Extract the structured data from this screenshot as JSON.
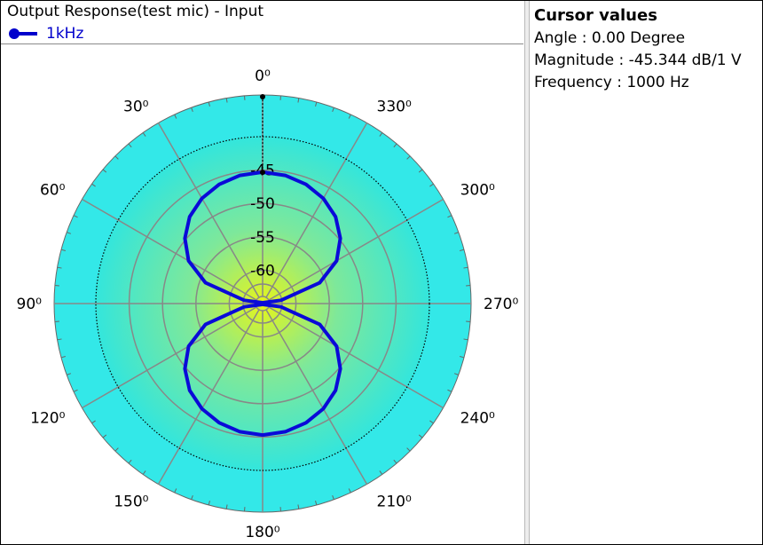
{
  "window": {
    "title": "Output Response(test mic) - Input"
  },
  "legend": {
    "label": "1kHz",
    "color": "#0000cc"
  },
  "cursor": {
    "title": "Cursor values",
    "angle_text": "Angle :  0.00 Degree",
    "magnitude_text": "Magnitude : -45.344 dB/1 V",
    "frequency_text": "Frequency : 1000 Hz"
  },
  "colors": {
    "trace": "#0a0ad8",
    "outer_ring": "#33e8e8",
    "gradient_center": "#e6f51a",
    "gradient_mid": "#7ee89a",
    "gradient_edge": "#33e6dc",
    "grid": "#888888"
  },
  "chart_data": {
    "type": "polar-line",
    "title": "Output Response(test mic) - Input",
    "series": [
      {
        "name": "1kHz",
        "angles_deg": [
          0,
          10,
          20,
          30,
          40,
          50,
          60,
          70,
          80,
          90,
          100,
          110,
          120,
          130,
          140,
          150,
          160,
          170,
          180,
          190,
          200,
          210,
          220,
          230,
          240,
          250,
          260,
          270,
          280,
          290,
          300,
          310,
          320,
          330,
          340,
          350,
          360
        ],
        "values_db": [
          -45.3,
          -45.5,
          -46.0,
          -46.8,
          -48.0,
          -49.8,
          -52.2,
          -55.9,
          -62.2,
          -66.0,
          -62.2,
          -55.9,
          -52.2,
          -49.8,
          -48.0,
          -46.8,
          -46.0,
          -45.5,
          -45.3,
          -45.5,
          -46.0,
          -46.8,
          -48.0,
          -49.8,
          -52.2,
          -55.9,
          -62.2,
          -66.0,
          -62.2,
          -55.9,
          -52.2,
          -49.8,
          -48.0,
          -46.8,
          -46.0,
          -45.5,
          -45.3
        ]
      }
    ],
    "radial_ticks": [
      "-45",
      "-50",
      "-55",
      "-60"
    ],
    "radial_tick_values": [
      -45,
      -50,
      -55,
      -60
    ],
    "radial_range": [
      -65,
      -40
    ],
    "angle_ticks_deg": [
      0,
      30,
      60,
      90,
      120,
      150,
      180,
      210,
      240,
      270,
      300,
      330
    ],
    "angle_labels": [
      "0⁰",
      "30⁰",
      "60⁰",
      "90⁰",
      "120⁰",
      "150⁰",
      "180⁰",
      "210⁰",
      "240⁰",
      "270⁰",
      "300⁰",
      "330⁰"
    ],
    "angle_direction": "counterclockwise",
    "zero_location": "top",
    "cursor_angle_deg": 0,
    "cursor_value_db": -45.344,
    "grid": true
  }
}
